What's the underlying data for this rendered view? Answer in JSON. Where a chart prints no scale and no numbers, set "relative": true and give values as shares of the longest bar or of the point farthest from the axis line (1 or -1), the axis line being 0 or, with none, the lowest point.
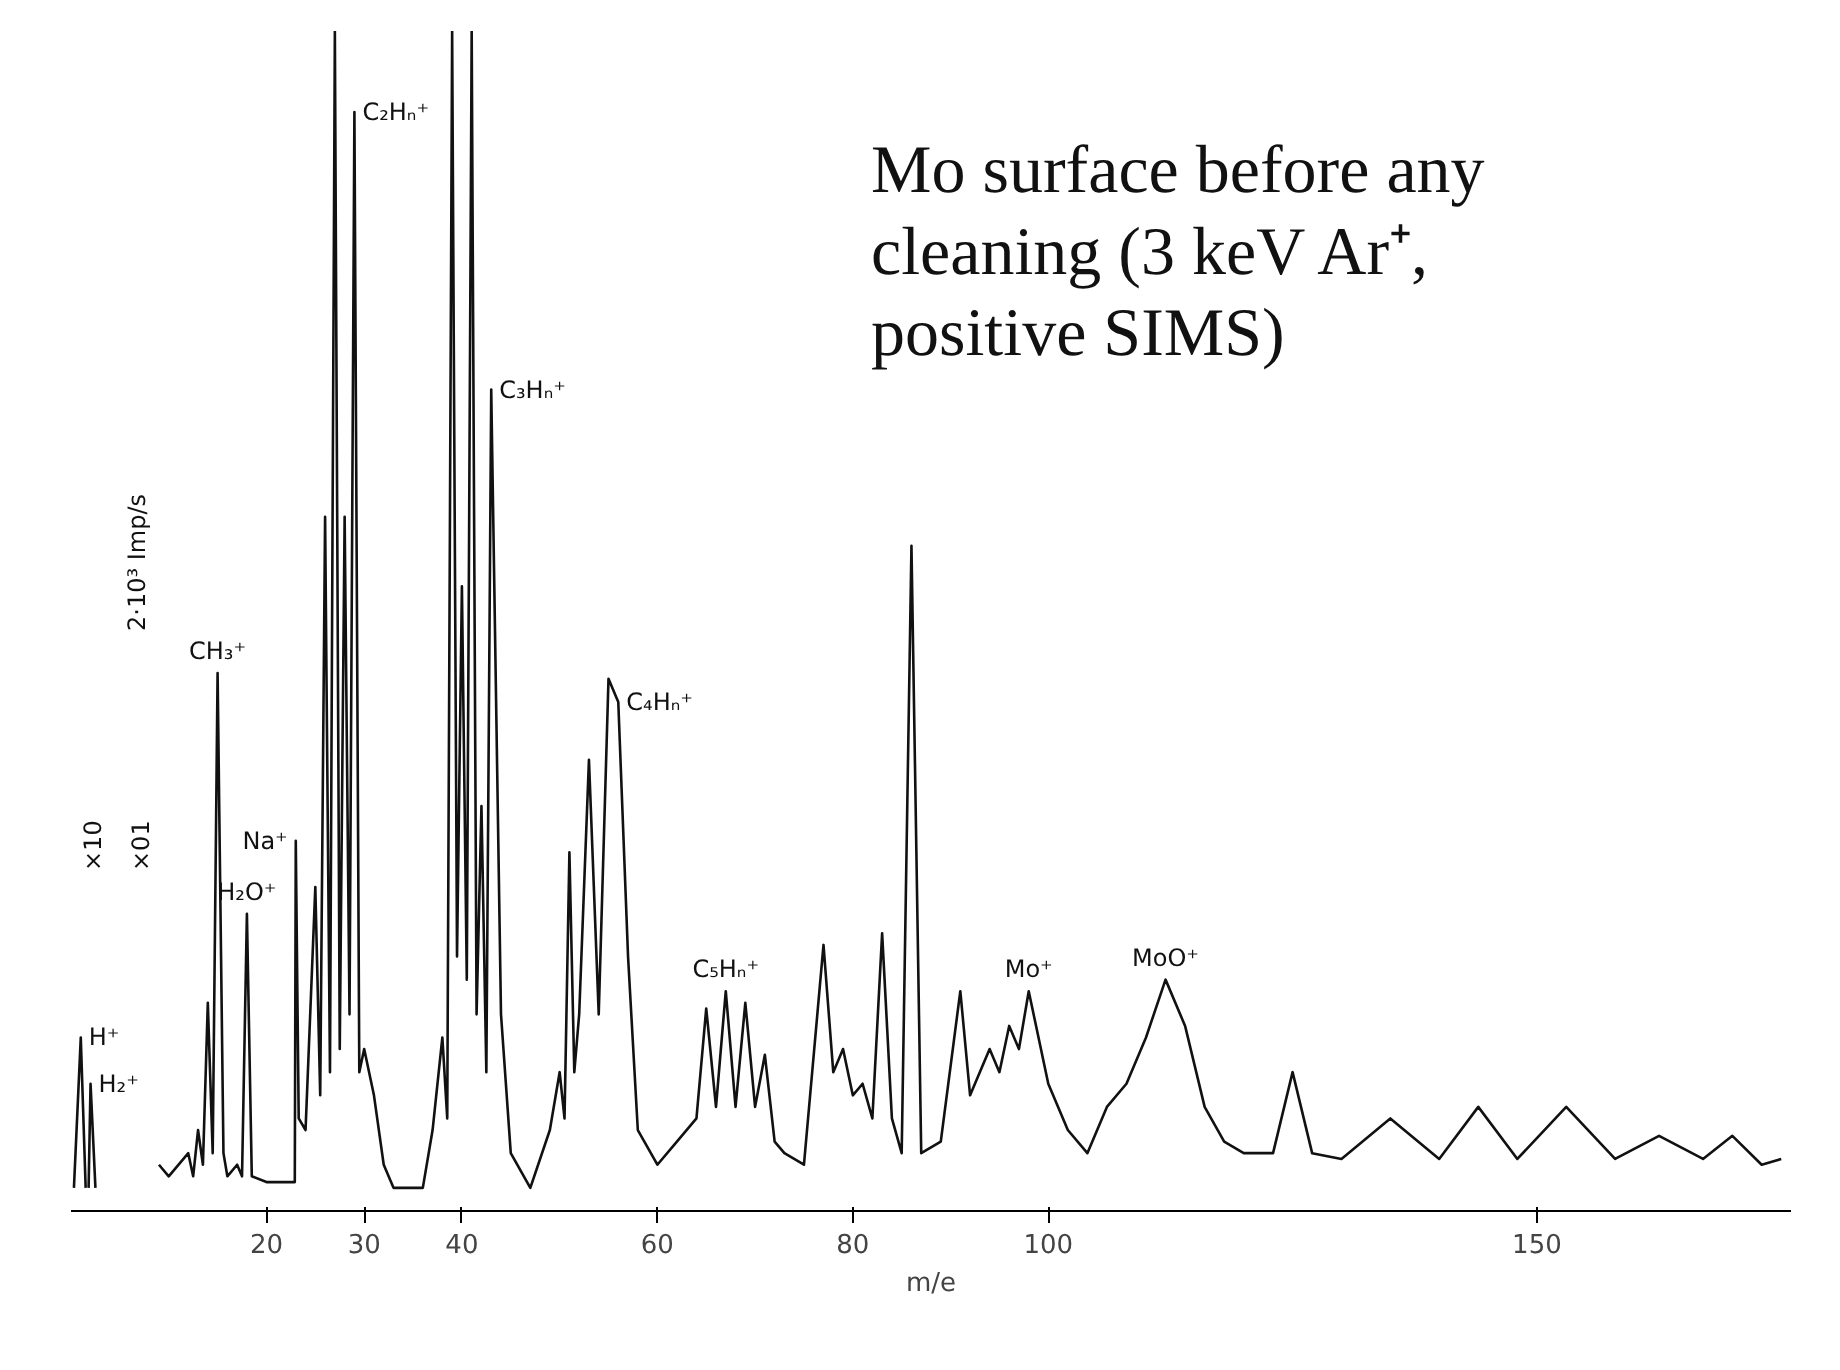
{
  "chart_data": {
    "type": "line",
    "relative": true,
    "title": "Mo surface before any cleaning (3 keV Ar⁺, positive SIMS)",
    "xlabel": "m/e",
    "x": [
      0.3,
      1,
      1.5,
      1.7,
      1.8,
      2,
      2.5,
      3,
      9,
      10,
      12,
      12.5,
      13,
      13.5,
      14,
      14.5,
      15,
      15.6,
      16,
      17,
      17.5,
      18,
      18.5,
      20,
      22.9,
      23,
      23.3,
      24,
      25,
      25.5,
      26,
      26.5,
      27,
      27.5,
      28,
      28.5,
      29,
      29.5,
      30,
      31,
      32,
      33,
      36,
      37,
      38,
      38.5,
      39,
      39.5,
      40,
      40.5,
      41,
      41.5,
      42,
      42.5,
      43,
      44,
      45,
      47,
      49,
      50,
      50.5,
      51,
      51.5,
      52,
      53,
      54,
      55,
      56,
      57,
      58,
      60,
      62,
      64,
      65,
      66,
      67,
      68,
      69,
      70,
      71,
      72,
      73,
      75,
      77,
      78,
      79,
      80,
      81,
      82,
      83,
      84,
      85,
      86,
      87,
      89,
      91,
      92,
      94,
      95,
      96,
      97,
      98,
      100,
      102,
      104,
      106,
      108,
      110,
      112,
      114,
      116,
      118,
      120,
      123,
      125,
      127,
      130,
      135,
      140,
      144,
      148,
      153,
      158,
      162.5,
      167,
      170,
      173,
      175
    ],
    "values": [
      0,
      0.13,
      0,
      null,
      0,
      0.09,
      0,
      null,
      0.02,
      0.01,
      0.03,
      0.01,
      0.05,
      0.02,
      0.16,
      0.03,
      0.445,
      0.03,
      0.01,
      0.02,
      0.01,
      0.237,
      0.01,
      0.005,
      0.005,
      0.3,
      0.06,
      0.05,
      0.26,
      0.08,
      0.58,
      0.1,
      1.0,
      0.12,
      0.58,
      0.15,
      0.93,
      0.1,
      0.12,
      0.08,
      0.02,
      0.0,
      0.0,
      0.05,
      0.13,
      0.06,
      1.0,
      0.2,
      0.52,
      0.18,
      1.0,
      0.15,
      0.33,
      0.1,
      0.69,
      0.15,
      0.03,
      0.0,
      0.05,
      0.1,
      0.06,
      0.29,
      0.1,
      0.15,
      0.37,
      0.15,
      0.44,
      0.42,
      0.2,
      0.05,
      0.02,
      0.04,
      0.06,
      0.155,
      0.07,
      0.17,
      0.07,
      0.16,
      0.07,
      0.115,
      0.04,
      0.03,
      0.02,
      0.21,
      0.1,
      0.12,
      0.08,
      0.09,
      0.06,
      0.22,
      0.06,
      0.03,
      0.555,
      0.03,
      0.04,
      0.17,
      0.08,
      0.12,
      0.1,
      0.14,
      0.12,
      0.17,
      0.09,
      0.05,
      0.03,
      0.07,
      0.09,
      0.13,
      0.18,
      0.14,
      0.07,
      0.04,
      0.03,
      0.03,
      0.1,
      0.03,
      0.025,
      0.06,
      0.025,
      0.07,
      0.025,
      0.07,
      0.025,
      0.045,
      0.025,
      0.045,
      0.02,
      0.025
    ],
    "color": "#111111",
    "line_style": "solid",
    "marker": "none",
    "grid": false,
    "tick_labels": "x",
    "xlim": [
      0,
      176
    ],
    "xticks": [
      20,
      30,
      40,
      60,
      80,
      100,
      150
    ],
    "annotations": [
      "2·10³ Imp/s",
      {
        "text": "H⁺",
        "x": 1,
        "y": 0.13
      },
      {
        "text": "H₂⁺",
        "x": 2,
        "y": 0.09
      },
      "×10",
      "×01",
      {
        "text": "CH₃⁺",
        "x": 15,
        "y": 0.445
      },
      {
        "text": "H₂O⁺",
        "x": 18,
        "y": 0.237
      },
      {
        "text": "Na⁺",
        "x": 23,
        "y": 0.3
      },
      {
        "text": "C₂Hₙ⁺",
        "x": 29,
        "y": 0.93
      },
      {
        "text": "C₃Hₙ⁺",
        "x": 43,
        "y": 0.69
      },
      {
        "text": "C₄Hₙ⁺",
        "x": 56,
        "y": 0.42
      },
      {
        "text": "C₅Hₙ⁺",
        "x": 67,
        "y": 0.17
      },
      {
        "text": "Mo⁺",
        "x": 98,
        "y": 0.17
      },
      {
        "text": "MoO⁺",
        "x": 112,
        "y": 0.18
      }
    ]
  }
}
